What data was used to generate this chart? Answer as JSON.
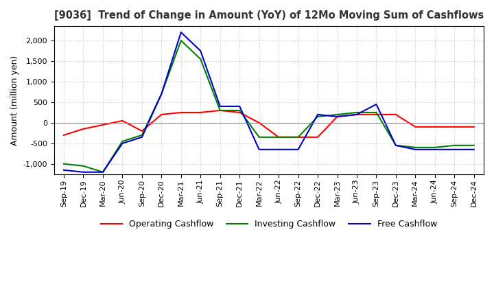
{
  "title": "[9036]  Trend of Change in Amount (YoY) of 12Mo Moving Sum of Cashflows",
  "ylabel": "Amount (million yen)",
  "background_color": "#ffffff",
  "grid_color": "#c8c8c8",
  "ylim": [
    -1250,
    2350
  ],
  "yticks": [
    -1000,
    -500,
    0,
    500,
    1000,
    1500,
    2000
  ],
  "x_labels": [
    "Sep-19",
    "Dec-19",
    "Mar-20",
    "Jun-20",
    "Sep-20",
    "Dec-20",
    "Mar-21",
    "Jun-21",
    "Sep-21",
    "Dec-21",
    "Mar-22",
    "Jun-22",
    "Sep-22",
    "Dec-22",
    "Mar-23",
    "Jun-23",
    "Sep-23",
    "Dec-23",
    "Mar-24",
    "Jun-24",
    "Sep-24",
    "Dec-24"
  ],
  "operating": [
    -300,
    -150,
    -50,
    50,
    -200,
    200,
    250,
    250,
    300,
    250,
    0,
    -350,
    -350,
    -350,
    150,
    200,
    200,
    200,
    -100,
    -100,
    -100,
    -100
  ],
  "investing": [
    -1000,
    -1050,
    -1200,
    -450,
    -300,
    700,
    2000,
    1550,
    300,
    300,
    -350,
    -350,
    -350,
    150,
    200,
    250,
    250,
    -550,
    -600,
    -600,
    -550,
    -550
  ],
  "free": [
    -1150,
    -1200,
    -1200,
    -500,
    -350,
    700,
    2200,
    1750,
    400,
    400,
    -650,
    -650,
    -650,
    200,
    150,
    200,
    450,
    -550,
    -650,
    -650,
    -650,
    -650
  ],
  "operating_color": "#ff0000",
  "investing_color": "#008000",
  "free_color": "#0000cc",
  "legend_labels": [
    "Operating Cashflow",
    "Investing Cashflow",
    "Free Cashflow"
  ]
}
